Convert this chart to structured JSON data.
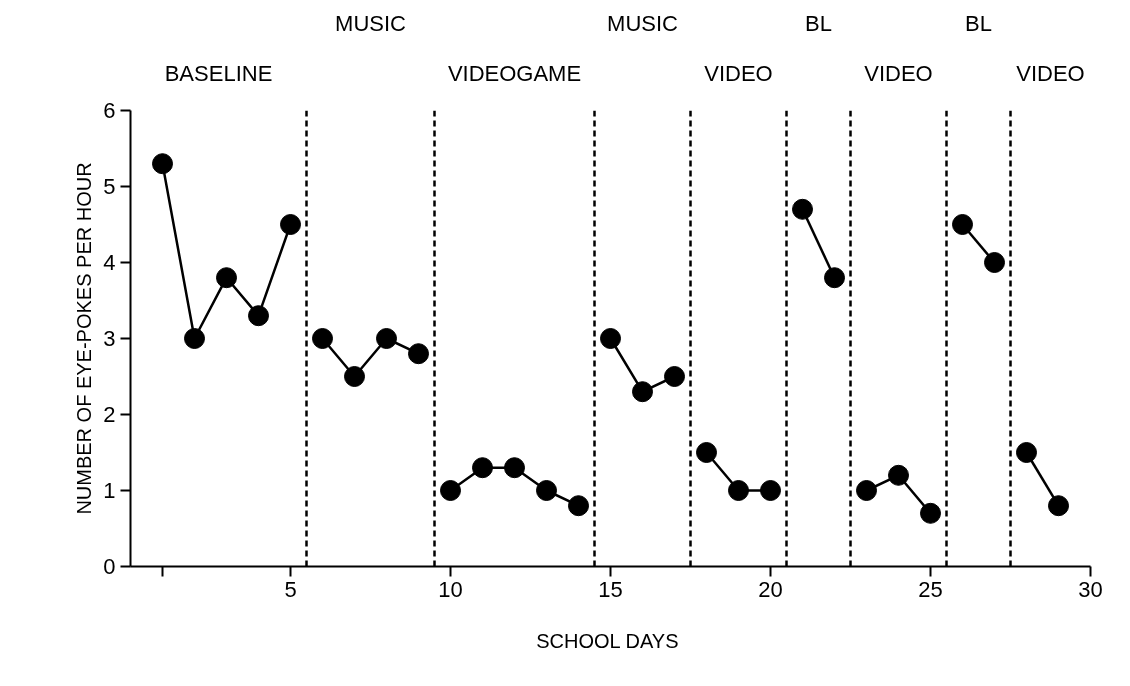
{
  "chart_data": {
    "type": "line",
    "xlabel": "SCHOOL  DAYS",
    "ylabel": "NUMBER OF EYE-POKES PER HOUR",
    "xlim": [
      0,
      30
    ],
    "ylim": [
      0,
      6
    ],
    "xticks": [
      {
        "value": 1,
        "label": null
      },
      5,
      10,
      15,
      20,
      25,
      30
    ],
    "yticks": [
      0,
      1,
      2,
      3,
      4,
      5,
      6
    ],
    "grid": false,
    "marker": "circle",
    "line_style": "solid",
    "series": [
      {
        "color": "#000000",
        "x": [
          1,
          2,
          3,
          4,
          5
        ],
        "values": [
          5.3,
          3.0,
          3.8,
          3.3,
          4.5
        ]
      },
      {
        "color": "#000000",
        "x": [
          6,
          7,
          8,
          9
        ],
        "values": [
          3.0,
          2.5,
          3.0,
          2.8
        ]
      },
      {
        "color": "#000000",
        "x": [
          10,
          11,
          12,
          13,
          14
        ],
        "values": [
          1.0,
          1.3,
          1.3,
          1.0,
          0.8
        ]
      },
      {
        "color": "#000000",
        "x": [
          15,
          16,
          17
        ],
        "values": [
          3.0,
          2.3,
          2.5
        ]
      },
      {
        "color": "#000000",
        "x": [
          18,
          19,
          20
        ],
        "values": [
          1.5,
          1.0,
          1.0
        ]
      },
      {
        "color": "#000000",
        "x": [
          21,
          22
        ],
        "values": [
          4.7,
          3.8
        ]
      },
      {
        "color": "#000000",
        "x": [
          23,
          24,
          25
        ],
        "values": [
          1.0,
          1.2,
          0.7
        ]
      },
      {
        "color": "#000000",
        "x": [
          26,
          27
        ],
        "values": [
          4.5,
          4.0
        ]
      },
      {
        "color": "#000000",
        "x": [
          28,
          29
        ],
        "values": [
          1.5,
          0.8
        ]
      }
    ],
    "ref_lines": [
      {
        "axis": "x",
        "value": 5.5,
        "line_style": "dashed",
        "color": "#000000"
      },
      {
        "axis": "x",
        "value": 9.5,
        "line_style": "dashed",
        "color": "#000000"
      },
      {
        "axis": "x",
        "value": 14.5,
        "line_style": "dashed",
        "color": "#000000"
      },
      {
        "axis": "x",
        "value": 17.5,
        "line_style": "dashed",
        "color": "#000000"
      },
      {
        "axis": "x",
        "value": 20.5,
        "line_style": "dashed",
        "color": "#000000"
      },
      {
        "axis": "x",
        "value": 22.5,
        "line_style": "dashed",
        "color": "#000000"
      },
      {
        "axis": "x",
        "value": 25.5,
        "line_style": "dashed",
        "color": "#000000"
      },
      {
        "axis": "x",
        "value": 27.5,
        "line_style": "dashed",
        "color": "#000000"
      }
    ],
    "annotations": [
      "BASELINE",
      "MUSIC",
      "VIDEOGAME",
      "MUSIC",
      "VIDEO",
      "BL",
      "VIDEO",
      "BL",
      "VIDEO"
    ]
  }
}
